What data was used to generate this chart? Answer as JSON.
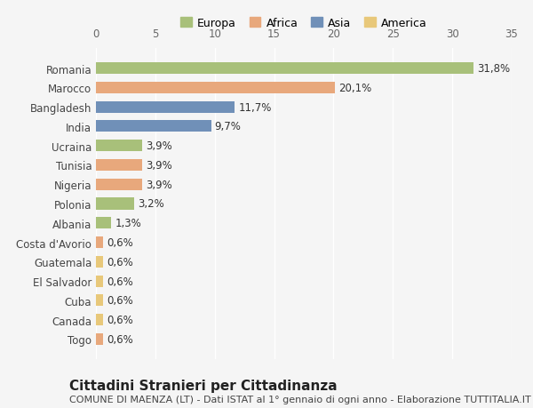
{
  "categories": [
    "Togo",
    "Canada",
    "Cuba",
    "El Salvador",
    "Guatemala",
    "Costa d'Avorio",
    "Albania",
    "Polonia",
    "Nigeria",
    "Tunisia",
    "Ucraina",
    "India",
    "Bangladesh",
    "Marocco",
    "Romania"
  ],
  "values": [
    0.6,
    0.6,
    0.6,
    0.6,
    0.6,
    0.6,
    1.3,
    3.2,
    3.9,
    3.9,
    3.9,
    9.7,
    11.7,
    20.1,
    31.8
  ],
  "continents": [
    "Africa",
    "America",
    "America",
    "America",
    "America",
    "Africa",
    "Europa",
    "Europa",
    "Africa",
    "Africa",
    "Europa",
    "Asia",
    "Asia",
    "Africa",
    "Europa"
  ],
  "colors": {
    "Europa": "#a8c07a",
    "Africa": "#e8a87c",
    "Asia": "#7090b8",
    "America": "#e8c87a"
  },
  "legend_labels": [
    "Europa",
    "Africa",
    "Asia",
    "America"
  ],
  "title": "Cittadini Stranieri per Cittadinanza",
  "subtitle": "COMUNE DI MAENZA (LT) - Dati ISTAT al 1° gennaio di ogni anno - Elaborazione TUTTITALIA.IT",
  "xlim": [
    0,
    35
  ],
  "xticks": [
    0,
    5,
    10,
    15,
    20,
    25,
    30,
    35
  ],
  "background_color": "#f5f5f5",
  "bar_height": 0.6,
  "label_fontsize": 8.5,
  "title_fontsize": 11,
  "subtitle_fontsize": 8
}
